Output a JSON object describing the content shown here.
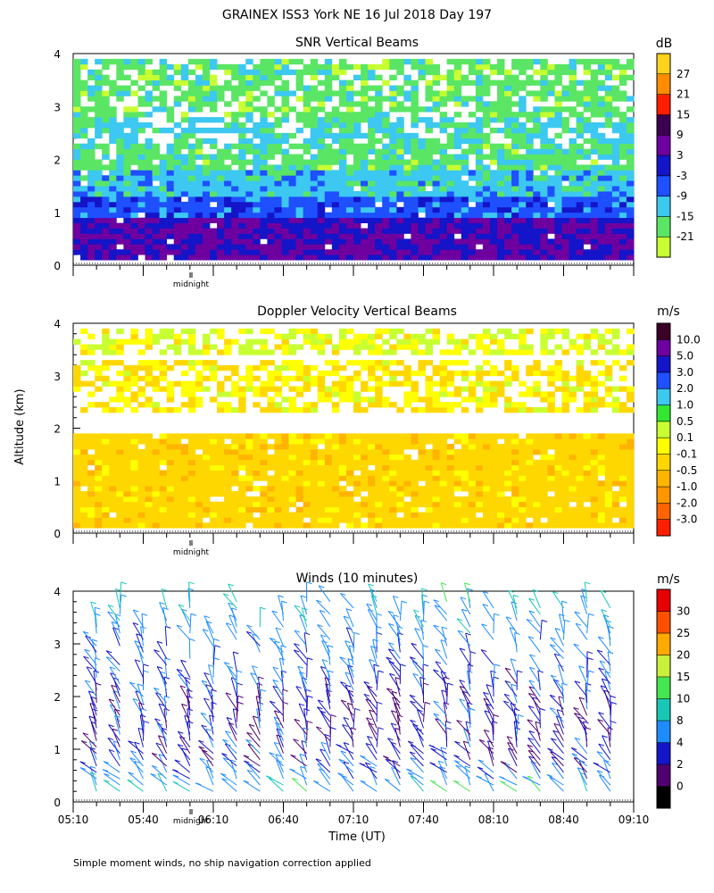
{
  "title": "GRAINEX ISS3 York NE  16 Jul 2018 Day 197",
  "ylabel": "Altitude (km)",
  "xlabel": "Time (UT)",
  "footnote": "Simple moment winds, no ship navigation correction applied",
  "midnight_label": "midnight",
  "chart_data": [
    {
      "type": "heatmap",
      "title": "SNR Vertical Beams",
      "xlabel": "Time (UT)",
      "ylabel": "Altitude (km)",
      "ylim": [
        0,
        4
      ],
      "yticks": [
        0,
        1,
        2,
        3,
        4
      ],
      "xlim": [
        "05:10",
        "09:10"
      ],
      "colorbar_unit": "dB",
      "colorbar_labels": [
        "-21",
        "-15",
        "-9",
        "-3",
        "3",
        "9",
        "15",
        "21",
        "27"
      ],
      "colorbar_colors": [
        "#c8ff32",
        "#5ae664",
        "#3cc8f0",
        "#1e50ff",
        "#1414c8",
        "#6e00a0",
        "#3c0050",
        "#ff1e00",
        "#ff8c00",
        "#ffd21e"
      ],
      "approx_profile": [
        {
          "altitude_km_range": [
            0.1,
            0.9
          ],
          "snr_db": 3
        },
        {
          "altitude_km_range": [
            0.9,
            1.3
          ],
          "snr_db": -6
        },
        {
          "altitude_km_range": [
            1.3,
            1.8
          ],
          "snr_db": -12
        },
        {
          "altitude_km_range": [
            1.8,
            2.3
          ],
          "snr_db": -17
        },
        {
          "altitude_km_range": [
            2.3,
            2.8
          ],
          "snr_db": -14
        },
        {
          "altitude_km_range": [
            2.8,
            3.9
          ],
          "snr_db": -18
        }
      ]
    },
    {
      "type": "heatmap",
      "title": "Doppler Velocity Vertical Beams",
      "xlabel": "Time (UT)",
      "ylabel": "Altitude (km)",
      "ylim": [
        0,
        4
      ],
      "yticks": [
        0,
        1,
        2,
        3,
        4
      ],
      "xlim": [
        "05:10",
        "09:10"
      ],
      "colorbar_unit": "m/s",
      "colorbar_labels": [
        "-3.0",
        "-2.0",
        "-1.0",
        "-0.5",
        "-0.1",
        "0.1",
        "0.5",
        "1.0",
        "2.0",
        "3.0",
        "5.0",
        "10.0"
      ],
      "colorbar_colors": [
        "#ff1e00",
        "#ff6400",
        "#ff9600",
        "#ffb400",
        "#ffd700",
        "#ffff00",
        "#c8ff32",
        "#32e632",
        "#3cc8f0",
        "#1e50ff",
        "#1414c8",
        "#6e00a0",
        "#3c0028"
      ],
      "approx_profile": [
        {
          "altitude_km_range": [
            0.1,
            1.9
          ],
          "velocity_ms": -0.3
        },
        {
          "altitude_km_range": [
            2.3,
            3.3
          ],
          "velocity_ms": -0.1
        },
        {
          "altitude_km_range": [
            3.4,
            3.9
          ],
          "velocity_ms": 0.1
        }
      ]
    },
    {
      "type": "barbs",
      "title": "Winds (10 minutes)",
      "xlabel": "Time (UT)",
      "ylabel": "Altitude (km)",
      "ylim": [
        0,
        4
      ],
      "yticks": [
        0,
        1,
        2,
        3,
        4
      ],
      "xticks": [
        "05:10",
        "05:40",
        "06:10",
        "06:40",
        "07:10",
        "07:40",
        "08:10",
        "08:40",
        "09:10"
      ],
      "colorbar_unit": "m/s",
      "colorbar_labels": [
        "0",
        "2",
        "4",
        "8",
        "10",
        "15",
        "20",
        "25",
        "30"
      ],
      "colorbar_colors": [
        "#000000",
        "#50006e",
        "#1414c8",
        "#1e8cff",
        "#19c8b4",
        "#46e650",
        "#c8f03c",
        "#ffaa00",
        "#ff5000",
        "#e60000"
      ],
      "interval_minutes": 10,
      "approx_speed_profile": [
        {
          "altitude_km": 0.3,
          "speed_ms": 6
        },
        {
          "altitude_km": 0.6,
          "speed_ms": 3
        },
        {
          "altitude_km": 1.0,
          "speed_ms": 2
        },
        {
          "altitude_km": 1.5,
          "speed_ms": 2
        },
        {
          "altitude_km": 2.0,
          "speed_ms": 3
        },
        {
          "altitude_km": 3.0,
          "speed_ms": 5
        },
        {
          "altitude_km": 3.8,
          "speed_ms": 8
        }
      ]
    }
  ]
}
